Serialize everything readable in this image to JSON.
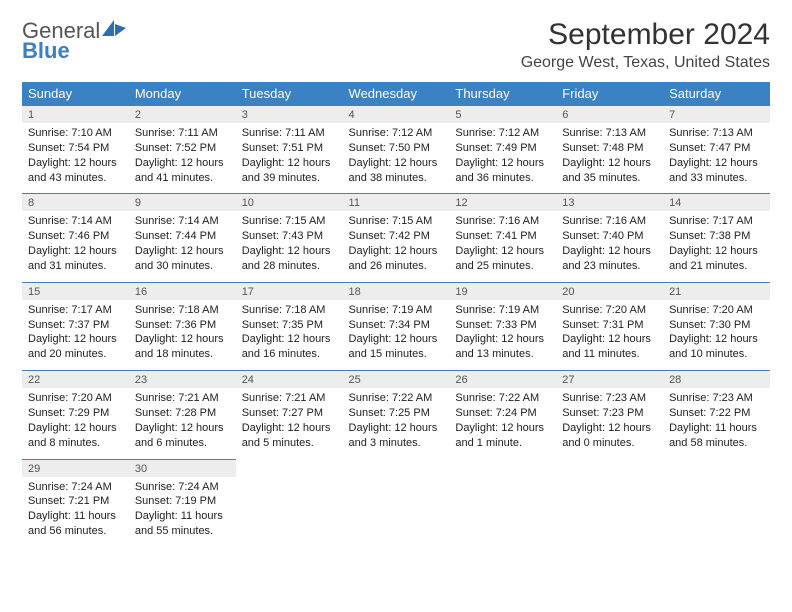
{
  "branding": {
    "word1": "General",
    "word2": "Blue",
    "logo_color": "#2b6fb0"
  },
  "header": {
    "month_title": "September 2024",
    "location": "George West, Texas, United States"
  },
  "calendar": {
    "header_bg": "#3b82c4",
    "header_text": "#ffffff",
    "daynum_bg": "#ededed",
    "rule_color": "#3b82c4",
    "days_of_week": [
      "Sunday",
      "Monday",
      "Tuesday",
      "Wednesday",
      "Thursday",
      "Friday",
      "Saturday"
    ],
    "weeks": [
      [
        {
          "n": "1",
          "sunrise": "7:10 AM",
          "sunset": "7:54 PM",
          "daylight": "12 hours and 43 minutes."
        },
        {
          "n": "2",
          "sunrise": "7:11 AM",
          "sunset": "7:52 PM",
          "daylight": "12 hours and 41 minutes."
        },
        {
          "n": "3",
          "sunrise": "7:11 AM",
          "sunset": "7:51 PM",
          "daylight": "12 hours and 39 minutes."
        },
        {
          "n": "4",
          "sunrise": "7:12 AM",
          "sunset": "7:50 PM",
          "daylight": "12 hours and 38 minutes."
        },
        {
          "n": "5",
          "sunrise": "7:12 AM",
          "sunset": "7:49 PM",
          "daylight": "12 hours and 36 minutes."
        },
        {
          "n": "6",
          "sunrise": "7:13 AM",
          "sunset": "7:48 PM",
          "daylight": "12 hours and 35 minutes."
        },
        {
          "n": "7",
          "sunrise": "7:13 AM",
          "sunset": "7:47 PM",
          "daylight": "12 hours and 33 minutes."
        }
      ],
      [
        {
          "n": "8",
          "sunrise": "7:14 AM",
          "sunset": "7:46 PM",
          "daylight": "12 hours and 31 minutes."
        },
        {
          "n": "9",
          "sunrise": "7:14 AM",
          "sunset": "7:44 PM",
          "daylight": "12 hours and 30 minutes."
        },
        {
          "n": "10",
          "sunrise": "7:15 AM",
          "sunset": "7:43 PM",
          "daylight": "12 hours and 28 minutes."
        },
        {
          "n": "11",
          "sunrise": "7:15 AM",
          "sunset": "7:42 PM",
          "daylight": "12 hours and 26 minutes."
        },
        {
          "n": "12",
          "sunrise": "7:16 AM",
          "sunset": "7:41 PM",
          "daylight": "12 hours and 25 minutes."
        },
        {
          "n": "13",
          "sunrise": "7:16 AM",
          "sunset": "7:40 PM",
          "daylight": "12 hours and 23 minutes."
        },
        {
          "n": "14",
          "sunrise": "7:17 AM",
          "sunset": "7:38 PM",
          "daylight": "12 hours and 21 minutes."
        }
      ],
      [
        {
          "n": "15",
          "sunrise": "7:17 AM",
          "sunset": "7:37 PM",
          "daylight": "12 hours and 20 minutes."
        },
        {
          "n": "16",
          "sunrise": "7:18 AM",
          "sunset": "7:36 PM",
          "daylight": "12 hours and 18 minutes."
        },
        {
          "n": "17",
          "sunrise": "7:18 AM",
          "sunset": "7:35 PM",
          "daylight": "12 hours and 16 minutes."
        },
        {
          "n": "18",
          "sunrise": "7:19 AM",
          "sunset": "7:34 PM",
          "daylight": "12 hours and 15 minutes."
        },
        {
          "n": "19",
          "sunrise": "7:19 AM",
          "sunset": "7:33 PM",
          "daylight": "12 hours and 13 minutes."
        },
        {
          "n": "20",
          "sunrise": "7:20 AM",
          "sunset": "7:31 PM",
          "daylight": "12 hours and 11 minutes."
        },
        {
          "n": "21",
          "sunrise": "7:20 AM",
          "sunset": "7:30 PM",
          "daylight": "12 hours and 10 minutes."
        }
      ],
      [
        {
          "n": "22",
          "sunrise": "7:20 AM",
          "sunset": "7:29 PM",
          "daylight": "12 hours and 8 minutes."
        },
        {
          "n": "23",
          "sunrise": "7:21 AM",
          "sunset": "7:28 PM",
          "daylight": "12 hours and 6 minutes."
        },
        {
          "n": "24",
          "sunrise": "7:21 AM",
          "sunset": "7:27 PM",
          "daylight": "12 hours and 5 minutes."
        },
        {
          "n": "25",
          "sunrise": "7:22 AM",
          "sunset": "7:25 PM",
          "daylight": "12 hours and 3 minutes."
        },
        {
          "n": "26",
          "sunrise": "7:22 AM",
          "sunset": "7:24 PM",
          "daylight": "12 hours and 1 minute."
        },
        {
          "n": "27",
          "sunrise": "7:23 AM",
          "sunset": "7:23 PM",
          "daylight": "12 hours and 0 minutes."
        },
        {
          "n": "28",
          "sunrise": "7:23 AM",
          "sunset": "7:22 PM",
          "daylight": "11 hours and 58 minutes."
        }
      ],
      [
        {
          "n": "29",
          "sunrise": "7:24 AM",
          "sunset": "7:21 PM",
          "daylight": "11 hours and 56 minutes."
        },
        {
          "n": "30",
          "sunrise": "7:24 AM",
          "sunset": "7:19 PM",
          "daylight": "11 hours and 55 minutes."
        },
        null,
        null,
        null,
        null,
        null
      ]
    ],
    "labels": {
      "sunrise_prefix": "Sunrise: ",
      "sunset_prefix": "Sunset: ",
      "daylight_prefix": "Daylight: "
    }
  }
}
